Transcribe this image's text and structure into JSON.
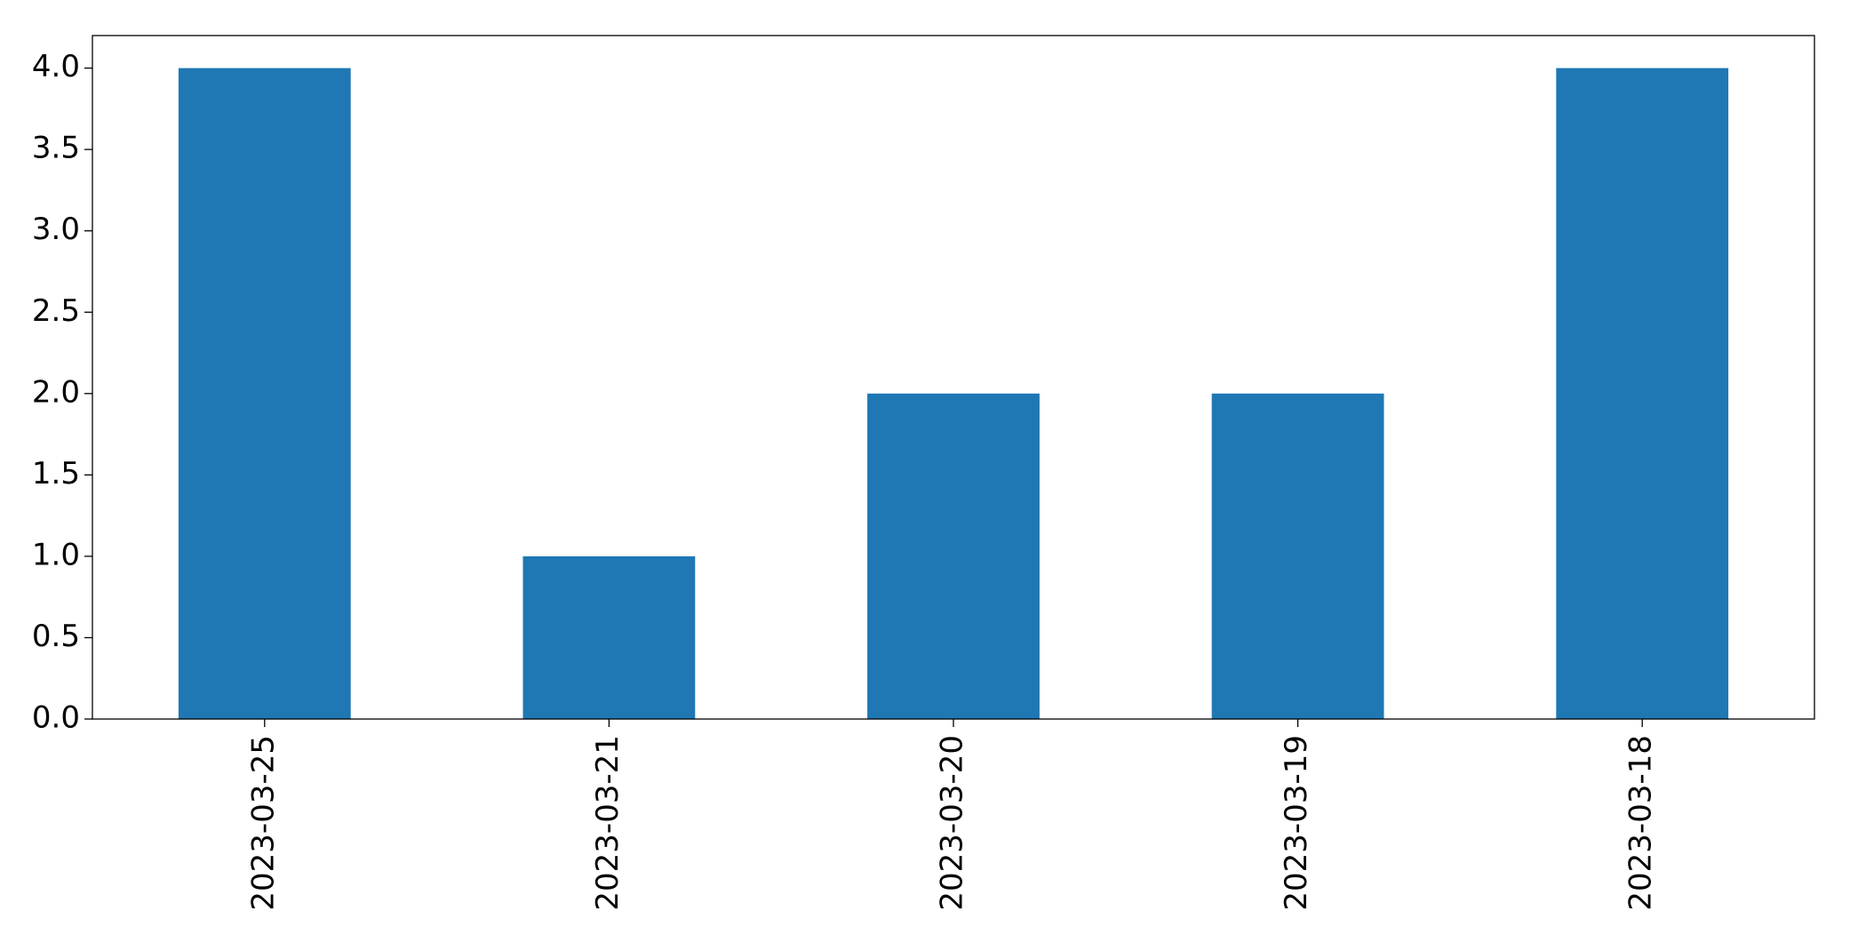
{
  "chart_data": {
    "type": "bar",
    "categories": [
      "2023-03-25",
      "2023-03-21",
      "2023-03-20",
      "2023-03-19",
      "2023-03-18"
    ],
    "values": [
      4,
      1,
      2,
      2,
      4
    ],
    "color": "#1f77b4",
    "ylim": [
      0,
      4.2
    ],
    "yticks": [
      {
        "value": 0,
        "label": "0.0"
      },
      0.5,
      {
        "value": 1,
        "label": "1.0"
      },
      1.5,
      {
        "value": 2,
        "label": "2.0"
      },
      2.5,
      {
        "value": 3,
        "label": "3.0"
      },
      3.5,
      {
        "value": 4,
        "label": "4.0"
      }
    ],
    "grid": false
  }
}
